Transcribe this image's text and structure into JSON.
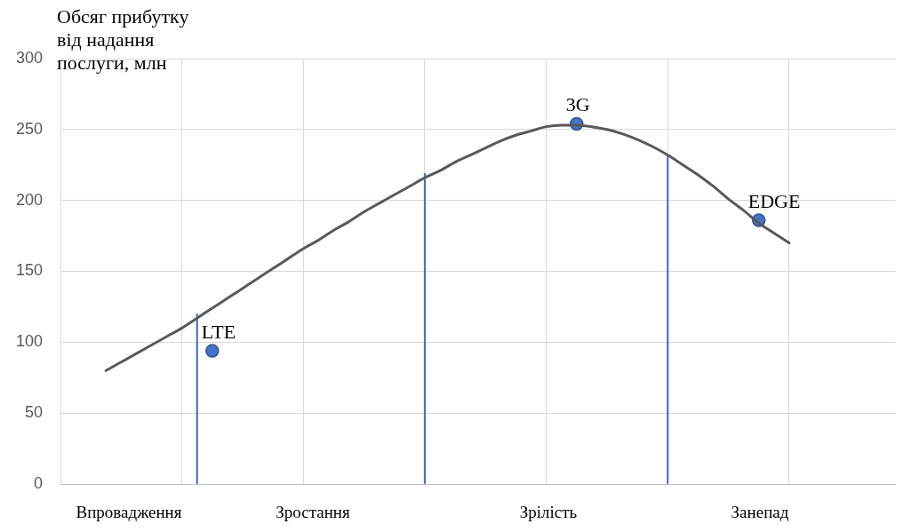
{
  "chart_data": {
    "type": "line",
    "ylabel": "Обсяг прибутку від надання послуги, млн",
    "categories": [
      null,
      null,
      null,
      null,
      null,
      null,
      null,
      null,
      null,
      null,
      null,
      null,
      null,
      null,
      null,
      null,
      null,
      null,
      null,
      null,
      null,
      null,
      null,
      null,
      null,
      null,
      null,
      null,
      null,
      null,
      null,
      null,
      null,
      null,
      null,
      null,
      null,
      null,
      null,
      null,
      null,
      null,
      null,
      null,
      null,
      null,
      null,
      null,
      null,
      null,
      null,
      null,
      null,
      null,
      null,
      null
    ],
    "ylim": [
      0,
      300
    ],
    "yticks": [
      0,
      50,
      100,
      150,
      200,
      250,
      300
    ],
    "grid": true,
    "legend": false,
    "tick_labels": "y",
    "line_style": "solid",
    "marker": "none",
    "series": [
      {
        "color": "#595959",
        "values": [
          null,
          null,
          null,
          80,
          86,
          92,
          98,
          104,
          110,
          117,
          124,
          131,
          138,
          145,
          152,
          159,
          166,
          172,
          179,
          185,
          192,
          198,
          204,
          210,
          216,
          221,
          227,
          232,
          237,
          242,
          246,
          249,
          252,
          253,
          253,
          252,
          250,
          247,
          243,
          238,
          232,
          225,
          218,
          210,
          201,
          193,
          184,
          177,
          170,
          null,
          null,
          null,
          null,
          null,
          null,
          null
        ]
      },
      {
        "type": "bar",
        "color": "#4472c4",
        "values": [
          null,
          null,
          null,
          null,
          null,
          null,
          null,
          null,
          null,
          120,
          null,
          null,
          null,
          null,
          null,
          null,
          null,
          null,
          null,
          null,
          null,
          null,
          null,
          null,
          219,
          null,
          null,
          null,
          null,
          null,
          null,
          null,
          null,
          null,
          null,
          null,
          null,
          null,
          null,
          null,
          232,
          null,
          null,
          null,
          null,
          null,
          null,
          null,
          null,
          null,
          null,
          null,
          null,
          null,
          null,
          null
        ]
      },
      {
        "type": "scatter",
        "name": "LTE",
        "color": "#4472c4",
        "marker": "circle",
        "values": [
          null,
          null,
          null,
          null,
          null,
          null,
          null,
          null,
          null,
          null,
          94,
          null,
          null,
          null,
          null,
          null,
          null,
          null,
          null,
          null,
          null,
          null,
          null,
          null,
          null,
          null,
          null,
          null,
          null,
          null,
          null,
          null,
          null,
          null,
          null,
          null,
          null,
          null,
          null,
          null,
          null,
          null,
          null,
          null,
          null,
          null,
          null,
          null,
          null,
          null,
          null,
          null,
          null,
          null,
          null,
          null
        ]
      },
      {
        "type": "scatter",
        "name": "3G",
        "color": "#4472c4",
        "marker": "circle",
        "values": [
          null,
          null,
          null,
          null,
          null,
          null,
          null,
          null,
          null,
          null,
          null,
          null,
          null,
          null,
          null,
          null,
          null,
          null,
          null,
          null,
          null,
          null,
          null,
          null,
          null,
          null,
          null,
          null,
          null,
          null,
          null,
          null,
          null,
          null,
          254,
          null,
          null,
          null,
          null,
          null,
          null,
          null,
          null,
          null,
          null,
          null,
          null,
          null,
          null,
          null,
          null,
          null,
          null,
          null,
          null,
          null
        ]
      },
      {
        "type": "scatter",
        "name": "EDGE",
        "color": "#4472c4",
        "marker": "circle",
        "values": [
          null,
          null,
          null,
          null,
          null,
          null,
          null,
          null,
          null,
          null,
          null,
          null,
          null,
          null,
          null,
          null,
          null,
          null,
          null,
          null,
          null,
          null,
          null,
          null,
          null,
          null,
          null,
          null,
          null,
          null,
          null,
          null,
          null,
          null,
          null,
          null,
          null,
          null,
          null,
          null,
          null,
          null,
          null,
          null,
          null,
          null,
          186,
          null,
          null,
          null,
          null,
          null,
          null,
          null,
          null,
          null
        ]
      }
    ],
    "annotations": [
      "Впровадження",
      "Зростання",
      "Зрілість",
      "Занепад"
    ]
  }
}
